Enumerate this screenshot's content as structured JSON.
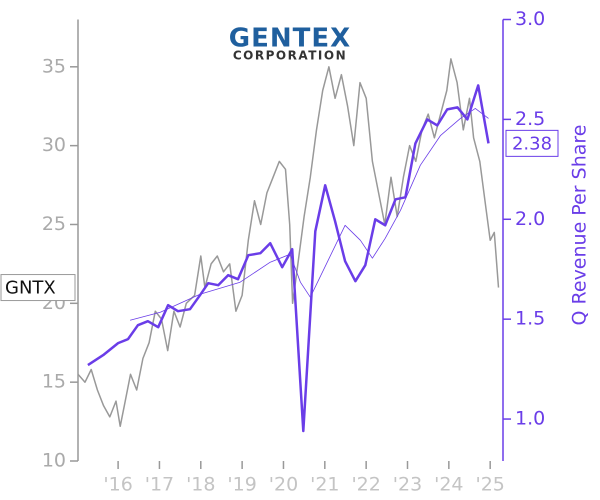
{
  "chart_data": {
    "type": "line",
    "logo": {
      "name": "GENTEX",
      "subtitle": "CORPORATION"
    },
    "y2label": "Q Revenue Per Share",
    "xlim": [
      2015.03,
      2025.31
    ],
    "xticks": [
      {
        "value": 2016,
        "label": "'16"
      },
      {
        "value": 2017,
        "label": "'17"
      },
      {
        "value": 2018,
        "label": "'18"
      },
      {
        "value": 2019,
        "label": "'19"
      },
      {
        "value": 2020,
        "label": "'20"
      },
      {
        "value": 2021,
        "label": "'21"
      },
      {
        "value": 2022,
        "label": "'22"
      },
      {
        "value": 2023,
        "label": "'23"
      },
      {
        "value": 2024,
        "label": "'24"
      },
      {
        "value": 2025,
        "label": "'25"
      }
    ],
    "ylim": [
      10,
      38
    ],
    "yticks": [
      10,
      15,
      20,
      25,
      30,
      35
    ],
    "y2lim": [
      0.79,
      3.0
    ],
    "y2ticks": [
      {
        "value": 1,
        "label": "1.0"
      },
      {
        "value": 1.5,
        "label": "1.5"
      },
      {
        "value": 2,
        "label": "2.0"
      },
      {
        "value": 2.5,
        "label": "2.5"
      },
      {
        "value": 3,
        "label": "3.0"
      }
    ],
    "series": [
      {
        "name": "GNTX",
        "color": "#999999",
        "axis": "y",
        "x": [
          2015.03,
          2015.2,
          2015.35,
          2015.5,
          2015.65,
          2015.8,
          2015.95,
          2016.05,
          2016.15,
          2016.3,
          2016.45,
          2016.6,
          2016.75,
          2016.9,
          2017.05,
          2017.2,
          2017.35,
          2017.5,
          2017.65,
          2017.85,
          2018.0,
          2018.1,
          2018.25,
          2018.4,
          2018.55,
          2018.7,
          2018.85,
          2019.0,
          2019.15,
          2019.3,
          2019.45,
          2019.6,
          2019.75,
          2019.9,
          2020.05,
          2020.15,
          2020.22,
          2020.35,
          2020.5,
          2020.65,
          2020.8,
          2020.95,
          2021.1,
          2021.25,
          2021.4,
          2021.55,
          2021.7,
          2021.85,
          2022.0,
          2022.15,
          2022.3,
          2022.45,
          2022.6,
          2022.75,
          2022.9,
          2023.05,
          2023.2,
          2023.35,
          2023.5,
          2023.65,
          2023.8,
          2023.95,
          2024.05,
          2024.2,
          2024.35,
          2024.5,
          2024.6,
          2024.75,
          2024.9,
          2025.0,
          2025.1,
          2025.2
        ],
        "values": [
          15.5,
          15.0,
          15.8,
          14.5,
          13.5,
          12.8,
          13.8,
          12.2,
          13.5,
          15.5,
          14.5,
          16.5,
          17.5,
          19.5,
          19.0,
          17.0,
          19.5,
          18.5,
          20.0,
          20.5,
          23.0,
          21.0,
          22.5,
          23.0,
          22.0,
          22.5,
          19.5,
          20.5,
          24.0,
          26.5,
          25.0,
          27.0,
          28.0,
          29.0,
          28.5,
          25.0,
          20.0,
          22.5,
          25.5,
          28.0,
          31.0,
          33.5,
          35.0,
          33.0,
          34.5,
          32.5,
          30.0,
          34.0,
          33.0,
          29.0,
          27.0,
          25.0,
          28.0,
          25.5,
          28.0,
          30.0,
          29.0,
          31.0,
          32.0,
          30.5,
          32.0,
          33.5,
          35.5,
          34.0,
          31.0,
          33.0,
          30.5,
          29.0,
          26.0,
          24.0,
          24.5,
          21.0
        ]
      },
      {
        "color": "#6a3de8",
        "axis": "y2",
        "x": [
          2016.29,
          2017.02,
          2017.98,
          2018.95,
          2019.68,
          2020.16,
          2020.41,
          2020.65,
          2021.49,
          2021.86,
          2022.15,
          2022.46,
          2022.83,
          2023.31,
          2023.8,
          2024.28,
          2024.64,
          2024.96
        ],
        "values": [
          1.495,
          1.535,
          1.625,
          1.685,
          1.785,
          1.825,
          1.685,
          1.61,
          1.97,
          1.895,
          1.805,
          1.905,
          2.045,
          2.27,
          2.42,
          2.505,
          2.555,
          2.505
        ]
      },
      {
        "color": "#6a3de8",
        "axis": "y2",
        "x": [
          2015.27,
          2015.64,
          2016.0,
          2016.24,
          2016.48,
          2016.72,
          2016.97,
          2017.21,
          2017.45,
          2017.74,
          2017.98,
          2018.18,
          2018.42,
          2018.66,
          2018.9,
          2019.15,
          2019.44,
          2019.68,
          2019.97,
          2020.21,
          2020.48,
          2020.77,
          2021.01,
          2021.25,
          2021.49,
          2021.74,
          2021.98,
          2022.22,
          2022.46,
          2022.71,
          2022.95,
          2023.19,
          2023.48,
          2023.72,
          2023.96,
          2024.21,
          2024.45,
          2024.71,
          2024.96
        ],
        "values": [
          1.27,
          1.32,
          1.38,
          1.4,
          1.47,
          1.49,
          1.46,
          1.57,
          1.54,
          1.55,
          1.62,
          1.68,
          1.67,
          1.72,
          1.7,
          1.82,
          1.83,
          1.88,
          1.76,
          1.85,
          0.94,
          1.94,
          2.17,
          1.99,
          1.79,
          1.69,
          1.77,
          2.0,
          1.97,
          2.1,
          2.11,
          2.38,
          2.5,
          2.47,
          2.55,
          2.56,
          2.5,
          2.67,
          2.38
        ],
        "value_labels": [
          null,
          null,
          null,
          null,
          null,
          null,
          null,
          null,
          null,
          null,
          null,
          null,
          null,
          null,
          null,
          null,
          null,
          null,
          null,
          null,
          null,
          null,
          null,
          null,
          null,
          null,
          null,
          null,
          null,
          null,
          null,
          null,
          null,
          null,
          null,
          null,
          null,
          null,
          "2.38"
        ]
      }
    ]
  }
}
